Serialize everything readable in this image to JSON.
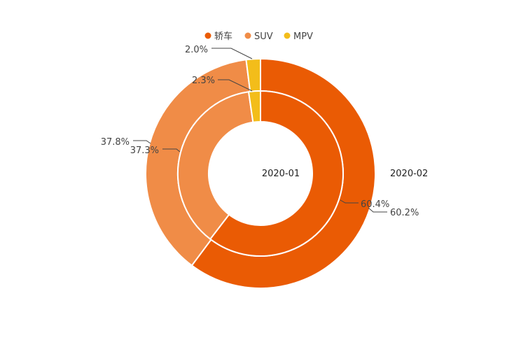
{
  "chart_data": {
    "type": "pie",
    "subtype": "nested-donut",
    "categories": [
      "轿车",
      "SUV",
      "MPV"
    ],
    "colors": [
      "#EA5B04",
      "#F08C47",
      "#F3BD1A"
    ],
    "legend": {
      "position": "top-center"
    },
    "series": [
      {
        "name": "2020-01",
        "ring": "inner",
        "values": [
          60.4,
          37.3,
          2.3
        ],
        "labels": [
          "60.4%",
          "37.3%",
          "2.3%"
        ]
      },
      {
        "name": "2020-02",
        "ring": "outer",
        "values": [
          60.2,
          37.8,
          2.0
        ],
        "labels": [
          "60.2%",
          "37.8%",
          "2.0%"
        ]
      }
    ]
  }
}
